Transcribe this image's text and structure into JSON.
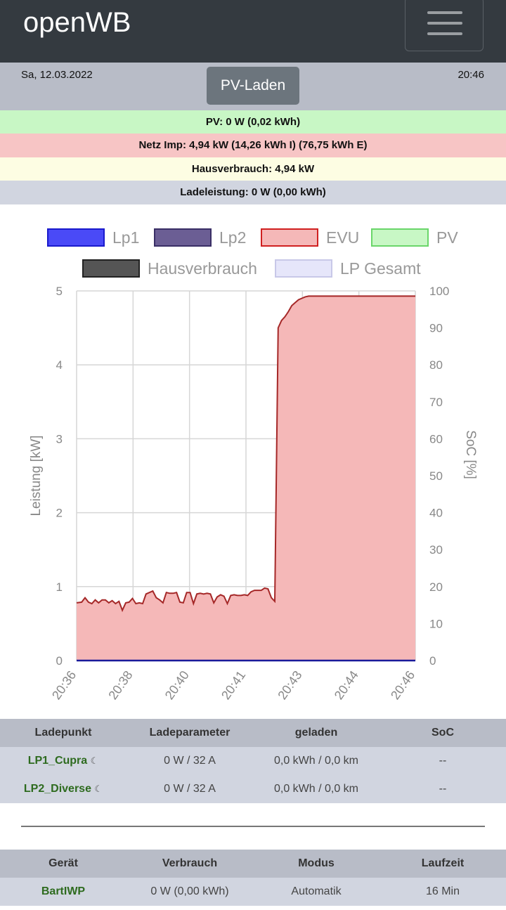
{
  "header": {
    "brand": "openWB",
    "menu_icon": "hamburger-menu-icon"
  },
  "status": {
    "date": "Sa, 12.03.2022",
    "time": "20:46",
    "mode_button": "PV-Laden"
  },
  "info_rows": {
    "pv": {
      "text": "PV: 0 W (0,02 kWh)",
      "color": "#c8f7c5"
    },
    "netz": {
      "text": "Netz Imp: 4,94 kW (14,26 kWh I) (76,75 kWh E)",
      "color": "#f7c5c5"
    },
    "haus": {
      "text": "Hausverbrauch: 4,94 kW",
      "color": "#fdfde3"
    },
    "lade": {
      "text": "Ladeleistung: 0 W (0,00 kWh)",
      "color": "#d1d5e0"
    }
  },
  "chart_data": {
    "type": "area",
    "legend": [
      {
        "name": "Lp1",
        "fill": "#4a4af7",
        "stroke": "#1a1acc"
      },
      {
        "name": "Lp2",
        "fill": "#6b5e94",
        "stroke": "#3a2f66"
      },
      {
        "name": "EVU",
        "fill": "#f5b8b8",
        "stroke": "#d02020"
      },
      {
        "name": "PV",
        "fill": "#c8f7c5",
        "stroke": "#6ad66a"
      },
      {
        "name": "Hausverbrauch",
        "fill": "#555555",
        "stroke": "#222222"
      },
      {
        "name": "LP Gesamt",
        "fill": "#e6e6fa",
        "stroke": "#c8c8e8"
      }
    ],
    "legend_placement": "top",
    "xlabels": [
      "20:36",
      "20:38",
      "20:40",
      "20:41",
      "20:43",
      "20:44",
      "20:46"
    ],
    "ylabel_left": "Leistung [kW]",
    "ylabel_right": "SoC [%]",
    "yticks_left": [
      "0",
      "1",
      "2",
      "3",
      "4",
      "5"
    ],
    "yticks_right": [
      "0",
      "10",
      "20",
      "30",
      "40",
      "50",
      "60",
      "70",
      "80",
      "90",
      "100"
    ],
    "ylim_left": [
      0,
      5
    ],
    "ylim_right": [
      0,
      100
    ],
    "grid": true,
    "series": [
      {
        "name": "EVU",
        "x": [
          0,
          0.3,
          0.5,
          0.7,
          0.9,
          1.1,
          1.3,
          1.5,
          1.7,
          1.9,
          2.1,
          2.3,
          2.5,
          2.7,
          2.9,
          3.1,
          3.3,
          3.5,
          3.7,
          3.9,
          4.1,
          4.3,
          4.5,
          4.7,
          4.9,
          5.1,
          5.3,
          5.5,
          5.7,
          5.9,
          6.1,
          6.3,
          6.5,
          6.7,
          6.9,
          7.1,
          7.3,
          7.5,
          7.7,
          7.9,
          8.1,
          8.3,
          8.5,
          8.7,
          8.9,
          9.1,
          9.3,
          9.5,
          9.7,
          9.9,
          10.1,
          10.3,
          10.5,
          10.7,
          10.9,
          11.1,
          11.3,
          11.5,
          11.7,
          11.9,
          12.1,
          12.3,
          12.5,
          12.7,
          12.9,
          13.1,
          13.3,
          13.5,
          13.7,
          13.9,
          14.1,
          14.3,
          14.5,
          14.7,
          14.9,
          15.1,
          15.3,
          15.5,
          15.7,
          15.9,
          16.1,
          16.3,
          16.5,
          16.7,
          16.9,
          17.1,
          17.3,
          17.5,
          17.6,
          17.8,
          18.0,
          18.2,
          18.4,
          18.6,
          18.8,
          19.0,
          19.2,
          19.4,
          19.6,
          19.8,
          20.0
        ],
        "y": [
          0.78,
          0.79,
          0.85,
          0.79,
          0.77,
          0.82,
          0.78,
          0.82,
          0.82,
          0.78,
          0.81,
          0.77,
          0.8,
          0.68,
          0.78,
          0.79,
          0.84,
          0.77,
          0.78,
          0.77,
          0.9,
          0.92,
          0.94,
          0.85,
          0.82,
          0.78,
          0.92,
          0.91,
          0.91,
          0.92,
          0.79,
          0.78,
          0.92,
          0.92,
          0.77,
          0.9,
          0.91,
          0.9,
          0.91,
          0.9,
          0.78,
          0.86,
          0.89,
          0.87,
          0.77,
          0.88,
          0.89,
          0.88,
          0.88,
          0.89,
          0.88,
          0.93,
          0.95,
          0.95,
          0.95,
          0.98,
          0.97,
          0.85,
          0.8,
          4.5,
          4.6,
          4.65,
          4.72,
          4.8,
          4.84,
          4.88,
          4.9,
          4.92,
          4.93,
          4.93,
          4.93,
          4.93,
          4.93,
          4.93,
          4.93,
          4.93,
          4.93,
          4.93,
          4.93,
          4.93,
          4.93,
          4.93,
          4.93,
          4.93,
          4.93,
          4.93,
          4.93,
          4.93,
          4.93,
          4.93,
          4.93,
          4.93,
          4.93,
          4.93,
          4.93,
          4.93,
          4.93,
          4.93,
          4.93,
          4.93,
          4.93
        ]
      },
      {
        "name": "Lp1",
        "x": [
          0,
          20
        ],
        "y": [
          0,
          0
        ]
      }
    ]
  },
  "lp_table": {
    "headers": [
      "Ladepunkt",
      "Ladeparameter",
      "geladen",
      "SoC"
    ],
    "rows": [
      {
        "name": "LP1_Cupra",
        "param": "0 W / 32 A",
        "geladen": "0,0 kWh / 0,0 km",
        "soc": "--"
      },
      {
        "name": "LP2_Diverse",
        "param": "0 W / 32 A",
        "geladen": "0,0 kWh / 0,0 km",
        "soc": "--"
      }
    ],
    "moon_icon": "☾"
  },
  "device_table": {
    "headers": [
      "Gerät",
      "Verbrauch",
      "Modus",
      "Laufzeit"
    ],
    "rows": [
      {
        "name": "BartIWP",
        "verbrauch": "0 W (0,00 kWh)",
        "modus": "Automatik",
        "laufzeit": "16 Min"
      }
    ]
  }
}
